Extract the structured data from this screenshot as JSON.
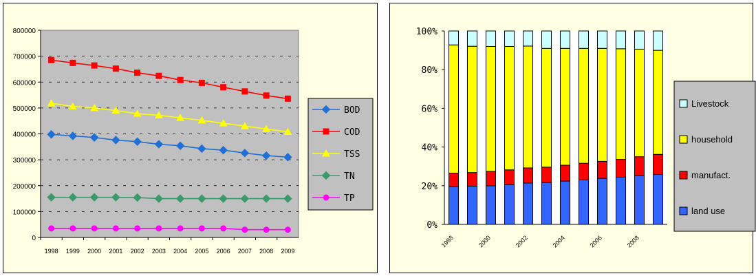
{
  "colors": {
    "panel_bg": "#ffffe3",
    "plot_bg": "#c0c0c0",
    "BOD": "#1f6fd6",
    "COD": "#ff0000",
    "TSS": "#ffff00",
    "TN": "#3a9a6a",
    "TP": "#ff00ff",
    "land_use": "#3366ff",
    "manufact": "#ff0000",
    "household": "#ffff00",
    "livestock": "#ccffff"
  },
  "chart_data": [
    {
      "type": "line",
      "x": [
        "1998",
        "1999",
        "2000",
        "2001",
        "2002",
        "2003",
        "2004",
        "2005",
        "2006",
        "2007",
        "2008",
        "2009"
      ],
      "ylim": [
        0,
        800000
      ],
      "yticks": [
        "0",
        "100000",
        "200000",
        "300000",
        "400000",
        "500000",
        "600000",
        "700000",
        "800000"
      ],
      "grid": true,
      "legend_placement": "right",
      "series": [
        {
          "name": "BOD",
          "marker": "diamond",
          "color_key": "BOD",
          "values": [
            398000,
            392000,
            386000,
            376000,
            370000,
            360000,
            354000,
            343000,
            337000,
            326000,
            316000,
            310000
          ]
        },
        {
          "name": "COD",
          "marker": "square",
          "color_key": "COD",
          "values": [
            685000,
            674000,
            664000,
            652000,
            636000,
            624000,
            608000,
            597000,
            580000,
            564000,
            548000,
            536000
          ]
        },
        {
          "name": "TSS",
          "marker": "triangle",
          "color_key": "TSS",
          "values": [
            518000,
            506000,
            500000,
            490000,
            478000,
            472000,
            462000,
            452000,
            441000,
            430000,
            419000,
            408000
          ]
        },
        {
          "name": "TN",
          "marker": "diamond",
          "color_key": "TN",
          "values": [
            155000,
            155000,
            155000,
            155000,
            154000,
            150000,
            150000,
            150000,
            150000,
            150000,
            150000,
            150000
          ]
        },
        {
          "name": "TP",
          "marker": "circle",
          "color_key": "TP",
          "values": [
            35000,
            35000,
            35000,
            35000,
            35000,
            35000,
            35000,
            35000,
            35000,
            30000,
            30000,
            30000
          ]
        }
      ]
    },
    {
      "type": "bar",
      "stacked": "percent",
      "categories": [
        "1998",
        "1999",
        "2000",
        "2001",
        "2002",
        "2003",
        "2004",
        "2005",
        "2006",
        "2007",
        "2008",
        "2009"
      ],
      "x_tick_labels": [
        "1998",
        "2000",
        "2002",
        "2004",
        "2006",
        "2008"
      ],
      "ylim": [
        0,
        100
      ],
      "yticks": [
        "0%",
        "20%",
        "40%",
        "60%",
        "80%",
        "100%"
      ],
      "legend_placement": "right",
      "series": [
        {
          "name": "land use",
          "color_key": "land_use",
          "values": [
            19.5,
            19.8,
            20.0,
            20.6,
            21.4,
            21.6,
            22.4,
            23.0,
            23.8,
            24.4,
            25.2,
            25.8
          ]
        },
        {
          "name": "manufact.",
          "color_key": "manufact",
          "values": [
            7.0,
            7.0,
            7.4,
            7.6,
            7.8,
            8.0,
            8.2,
            8.6,
            8.8,
            9.2,
            9.8,
            10.4
          ]
        },
        {
          "name": "household",
          "color_key": "household",
          "values": [
            66.3,
            65.3,
            64.6,
            63.8,
            63.0,
            61.4,
            60.4,
            59.4,
            58.4,
            57.2,
            55.6,
            53.8
          ]
        },
        {
          "name": "Livestock",
          "color_key": "livestock",
          "values": [
            7.2,
            7.9,
            8.0,
            8.0,
            7.8,
            9.0,
            9.0,
            9.0,
            9.0,
            9.2,
            9.4,
            10.0
          ]
        }
      ]
    }
  ]
}
